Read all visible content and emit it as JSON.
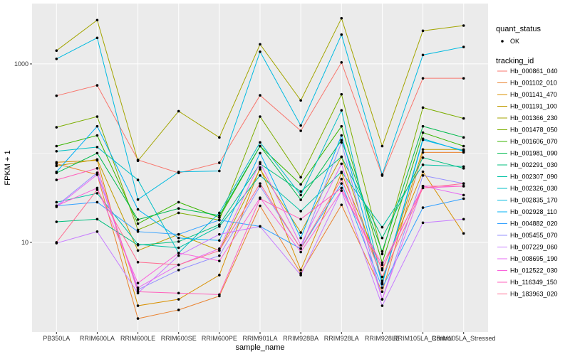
{
  "chart_data": {
    "type": "line",
    "x_label": "sample_name",
    "y_label": "FPKM + 1",
    "categories": [
      "PB350LA",
      "RRIM600LA",
      "RRIM600LE",
      "RRIM600SE",
      "RRIM600PE",
      "RRIM901LA",
      "RRIM928BA",
      "RRIM928LA",
      "RRIM928LE",
      "RRIM105LA_Control",
      "RRIM105LA_Stressed"
    ],
    "ylim": [
      0.99,
      4750
    ],
    "yticks": [
      10,
      1000
    ],
    "y_minor_ticks": [
      100
    ],
    "y_log": true,
    "grid": true,
    "point_legend_title": "quant_status",
    "point_legend_label": "OK",
    "legend_title": "tracking_id",
    "legend_position": "right",
    "series": [
      {
        "name": "Hb_000861_040",
        "color": "#F8766D",
        "values": [
          440,
          575,
          84,
          60,
          78,
          445,
          178,
          1040,
          56,
          690,
          690
        ]
      },
      {
        "name": "Hb_001102_010",
        "color": "#EA8331",
        "values": [
          76,
          57.5,
          1.4,
          1.75,
          2.5,
          25.7,
          4.5,
          26.3,
          2.8,
          102,
          102
        ]
      },
      {
        "name": "Hb_001141_470",
        "color": "#D89000",
        "values": [
          79,
          83,
          1.95,
          2.3,
          4.3,
          69,
          4.9,
          60,
          4.9,
          62,
          12.6
        ]
      },
      {
        "name": "Hb_001191_100",
        "color": "#C09B00",
        "values": [
          72,
          85,
          8.1,
          12.3,
          8.1,
          66,
          12.9,
          91,
          3.7,
          110,
          110
        ]
      },
      {
        "name": "Hb_001366_230",
        "color": "#A3A500",
        "values": [
          1410,
          3100,
          82,
          295,
          150,
          1660,
          390,
          3250,
          120,
          2350,
          2690
        ]
      },
      {
        "name": "Hb_001478_050",
        "color": "#7CAE00",
        "values": [
          195,
          257,
          13.8,
          21.4,
          17.8,
          257,
          53.7,
          457,
          7.4,
          324,
          245
        ]
      },
      {
        "name": "Hb_001606_070",
        "color": "#39B600",
        "values": [
          120,
          158,
          16.2,
          28.2,
          19,
          120,
          44.7,
          200,
          5.9,
          170,
          120
        ]
      },
      {
        "name": "Hb_001981_090",
        "color": "#00BB4E",
        "values": [
          60,
          100,
          18,
          24,
          20,
          120,
          30,
          140,
          7.9,
          200,
          150
        ]
      },
      {
        "name": "Hb_002291_030",
        "color": "#00BF7D",
        "values": [
          17,
          18.2,
          9.3,
          10.2,
          15.8,
          76,
          37.2,
          91,
          11.2,
          89,
          67.6
        ]
      },
      {
        "name": "Hb_002307_090",
        "color": "#00C1A3",
        "values": [
          28.2,
          35.5,
          9.5,
          8.7,
          15.1,
          56.2,
          22.4,
          61.7,
          14.8,
          74,
          70.8
        ]
      },
      {
        "name": "Hb_002326_030",
        "color": "#00BFC4",
        "values": [
          105,
          117,
          50.1,
          7.6,
          21.4,
          132,
          33.9,
          302,
          3.5,
          145,
          105
        ]
      },
      {
        "name": "Hb_002835_170",
        "color": "#00BAE0",
        "values": [
          1140,
          1960,
          30.2,
          61.7,
          63.1,
          1370,
          204,
          2130,
          57.5,
          1260,
          1550
        ]
      },
      {
        "name": "Hb_002928_110",
        "color": "#00B0F6",
        "values": [
          61.7,
          200,
          23.4,
          11.2,
          10.5,
          100,
          11.2,
          158,
          3.4,
          141,
          107
        ]
      },
      {
        "name": "Hb_004882_020",
        "color": "#35A2FF",
        "values": [
          25.7,
          28.2,
          13.2,
          12.3,
          17.8,
          15.1,
          8.5,
          45.7,
          3.1,
          24.5,
          30.9
        ]
      },
      {
        "name": "Hb_005455_070",
        "color": "#9590FF",
        "values": [
          25.7,
          60.3,
          2.95,
          4.9,
          7.1,
          42.7,
          8.5,
          132,
          2.3,
          56.2,
          45.7
        ]
      },
      {
        "name": "Hb_007229_060",
        "color": "#C77CFF",
        "values": [
          9.8,
          13.2,
          2.7,
          7.1,
          12.3,
          15.1,
          4.3,
          38,
          1.95,
          16.6,
          18.2
        ]
      },
      {
        "name": "Hb_008695_190",
        "color": "#E76BF3",
        "values": [
          25,
          57.5,
          3.1,
          5.6,
          8.5,
          79,
          9.3,
          76,
          2.3,
          42.7,
          33.9
        ]
      },
      {
        "name": "Hb_012522_030",
        "color": "#FA62DB",
        "values": [
          25.7,
          40.7,
          3.5,
          7.6,
          6.2,
          31.6,
          7.8,
          38,
          5.6,
          40.7,
          42.7
        ]
      },
      {
        "name": "Hb_116349_150",
        "color": "#FF62BC",
        "values": [
          50.1,
          67.6,
          2.8,
          2.7,
          2.6,
          30.9,
          18.2,
          40.7,
          5.1,
          42.7,
          42.7
        ]
      },
      {
        "name": "Hb_183963_020",
        "color": "#FF6C91",
        "values": [
          10,
          38.9,
          6,
          5.6,
          8.1,
          45.7,
          8.5,
          51.3,
          4.1,
          40.7,
          45.7
        ]
      }
    ]
  }
}
